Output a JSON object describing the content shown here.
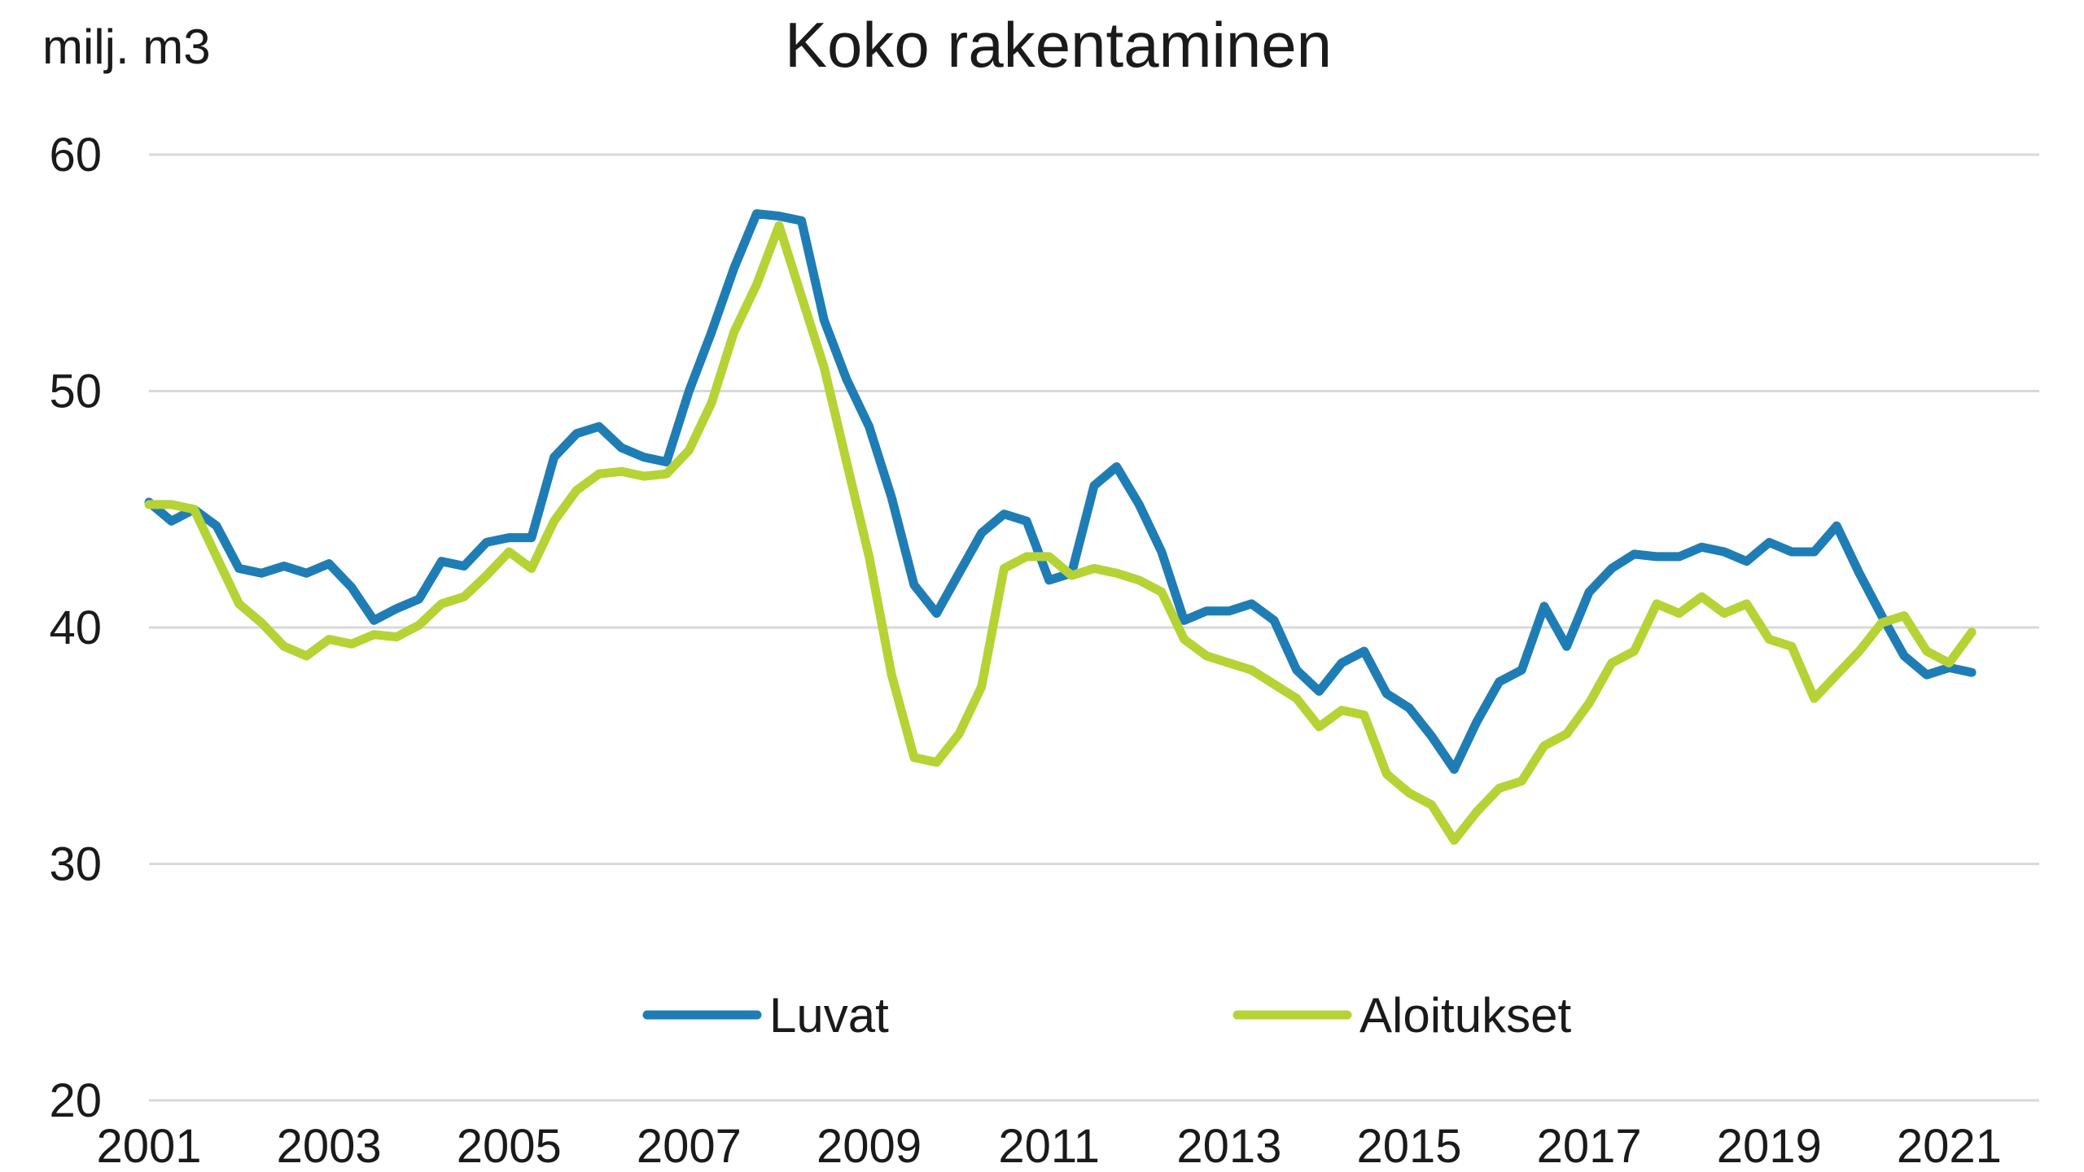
{
  "chart_data": {
    "type": "line",
    "title": "Koko rakentaminen",
    "ylabel": "milj. m3",
    "xlabel": "",
    "ylim": [
      20,
      60
    ],
    "yticks": [
      20,
      30,
      40,
      50,
      60
    ],
    "xlim": [
      2001,
      2022
    ],
    "xticks": [
      2001,
      2003,
      2005,
      2007,
      2009,
      2011,
      2013,
      2015,
      2017,
      2019,
      2021
    ],
    "grid": true,
    "legend": "bottom-center",
    "series": [
      {
        "name": "Luvat",
        "color": "#1f7db5",
        "x": [
          2001.0,
          2001.25,
          2001.5,
          2001.75,
          2002.0,
          2002.25,
          2002.5,
          2002.75,
          2003.0,
          2003.25,
          2003.5,
          2003.75,
          2004.0,
          2004.25,
          2004.5,
          2004.75,
          2005.0,
          2005.25,
          2005.5,
          2005.75,
          2006.0,
          2006.25,
          2006.5,
          2006.75,
          2007.0,
          2007.25,
          2007.5,
          2007.75,
          2008.0,
          2008.25,
          2008.5,
          2008.75,
          2009.0,
          2009.25,
          2009.5,
          2009.75,
          2010.0,
          2010.25,
          2010.5,
          2010.75,
          2011.0,
          2011.25,
          2011.5,
          2011.75,
          2012.0,
          2012.25,
          2012.5,
          2012.75,
          2013.0,
          2013.25,
          2013.5,
          2013.75,
          2014.0,
          2014.25,
          2014.5,
          2014.75,
          2015.0,
          2015.25,
          2015.5,
          2015.75,
          2016.0,
          2016.25,
          2016.5,
          2016.75,
          2017.0,
          2017.25,
          2017.5,
          2017.75,
          2018.0,
          2018.25,
          2018.5,
          2018.75,
          2019.0,
          2019.25,
          2019.5,
          2019.75,
          2020.0,
          2020.25,
          2020.5,
          2020.75,
          2021.0,
          2021.25
        ],
        "values": [
          45.3,
          44.5,
          45.0,
          44.3,
          42.5,
          42.3,
          42.6,
          42.3,
          42.7,
          41.7,
          40.3,
          40.8,
          41.2,
          42.8,
          42.6,
          43.6,
          43.8,
          43.8,
          47.2,
          48.2,
          48.5,
          47.6,
          47.2,
          47.0,
          50.0,
          52.5,
          55.2,
          57.5,
          57.4,
          57.2,
          53.0,
          50.5,
          48.5,
          45.5,
          41.8,
          40.6,
          42.3,
          44.0,
          44.8,
          44.5,
          42.0,
          42.3,
          46.0,
          46.8,
          45.2,
          43.2,
          40.3,
          40.7,
          40.7,
          41.0,
          40.3,
          38.2,
          37.3,
          38.5,
          39.0,
          37.2,
          36.6,
          35.4,
          34.0,
          36.0,
          37.7,
          38.2,
          40.9,
          39.2,
          41.5,
          42.5,
          43.1,
          43.0,
          43.0,
          43.4,
          43.2,
          42.8,
          43.6,
          43.2,
          43.2,
          44.3,
          42.3,
          40.5,
          38.8,
          38.0,
          38.3,
          38.1
        ]
      },
      {
        "name": "Aloitukset",
        "color": "#b5d334",
        "x": [
          2001.0,
          2001.25,
          2001.5,
          2001.75,
          2002.0,
          2002.25,
          2002.5,
          2002.75,
          2003.0,
          2003.25,
          2003.5,
          2003.75,
          2004.0,
          2004.25,
          2004.5,
          2004.75,
          2005.0,
          2005.25,
          2005.5,
          2005.75,
          2006.0,
          2006.25,
          2006.5,
          2006.75,
          2007.0,
          2007.25,
          2007.5,
          2007.75,
          2008.0,
          2008.25,
          2008.5,
          2008.75,
          2009.0,
          2009.25,
          2009.5,
          2009.75,
          2010.0,
          2010.25,
          2010.5,
          2010.75,
          2011.0,
          2011.25,
          2011.5,
          2011.75,
          2012.0,
          2012.25,
          2012.5,
          2012.75,
          2013.0,
          2013.25,
          2013.5,
          2013.75,
          2014.0,
          2014.25,
          2014.5,
          2014.75,
          2015.0,
          2015.25,
          2015.5,
          2015.75,
          2016.0,
          2016.25,
          2016.5,
          2016.75,
          2017.0,
          2017.25,
          2017.5,
          2017.75,
          2018.0,
          2018.25,
          2018.5,
          2018.75,
          2019.0,
          2019.25,
          2019.5,
          2019.75,
          2020.0,
          2020.25,
          2020.5,
          2020.75,
          2021.0,
          2021.25
        ],
        "values": [
          45.2,
          45.2,
          45.0,
          43.0,
          41.0,
          40.2,
          39.2,
          38.8,
          39.5,
          39.3,
          39.7,
          39.6,
          40.1,
          41.0,
          41.3,
          42.2,
          43.2,
          42.5,
          44.5,
          45.8,
          46.5,
          46.6,
          46.4,
          46.5,
          47.5,
          49.5,
          52.5,
          54.5,
          57.0,
          54.0,
          51.0,
          47.0,
          43.0,
          38.0,
          34.5,
          34.3,
          35.5,
          37.5,
          42.5,
          43.0,
          43.0,
          42.2,
          42.5,
          42.3,
          42.0,
          41.5,
          39.5,
          38.8,
          38.5,
          38.2,
          37.6,
          37.0,
          35.8,
          36.5,
          36.3,
          33.8,
          33.0,
          32.5,
          31.0,
          32.2,
          33.2,
          33.5,
          35.0,
          35.5,
          36.8,
          38.5,
          39.0,
          41.0,
          40.6,
          41.3,
          40.6,
          41.0,
          39.5,
          39.2,
          37.0,
          38.0,
          39.0,
          40.2,
          40.5,
          39.0,
          38.5,
          39.8
        ]
      }
    ]
  }
}
